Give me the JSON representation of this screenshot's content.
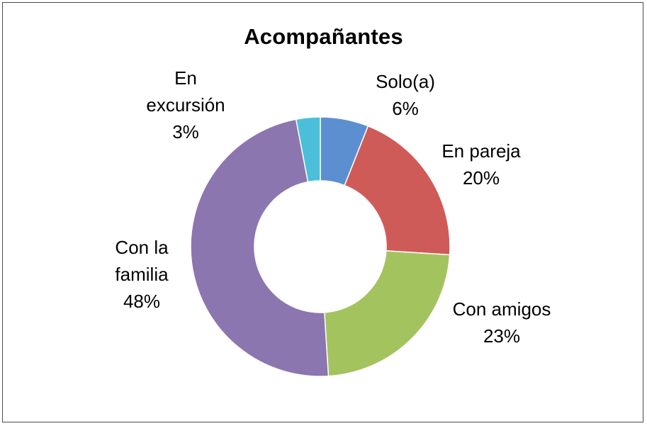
{
  "chart_data": {
    "type": "pie",
    "variant": "donut",
    "title": "Acompañantes",
    "start_angle_deg": 0,
    "direction": "clockwise",
    "slices": [
      {
        "label": "Solo(a)",
        "label_lines": [
          "Solo(a)"
        ],
        "value": 6,
        "pct_label": "6%",
        "color": "#5b8fd0"
      },
      {
        "label": "En pareja",
        "label_lines": [
          "En pareja"
        ],
        "value": 20,
        "pct_label": "20%",
        "color": "#cf5b58"
      },
      {
        "label": "Con amigos",
        "label_lines": [
          "Con amigos"
        ],
        "value": 23,
        "pct_label": "23%",
        "color": "#a3c35f"
      },
      {
        "label": "Con la familia",
        "label_lines": [
          "Con la",
          "familia"
        ],
        "value": 48,
        "pct_label": "48%",
        "color": "#8c76b0"
      },
      {
        "label": "En excursión",
        "label_lines": [
          "En",
          "excursión"
        ],
        "value": 3,
        "pct_label": "3%",
        "color": "#4bbfd9"
      }
    ],
    "legend": "none"
  }
}
